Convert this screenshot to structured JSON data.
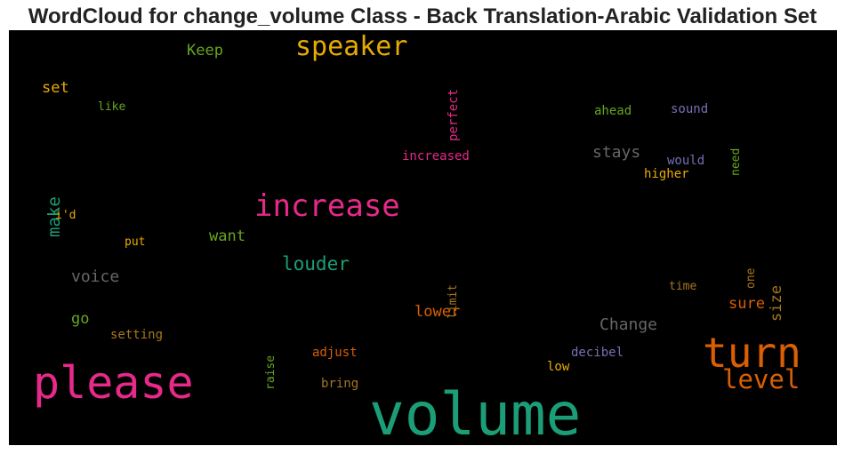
{
  "chart_data": {
    "type": "wordcloud",
    "title": "WordCloud for change_volume Class - Back Translation-Arabic Validation Set",
    "colors": {
      "green": "#1b9e77",
      "orange": "#d95f02",
      "purple": "#7570b3",
      "magenta": "#e7298a",
      "lime": "#66a61e",
      "yellow": "#e6ab02",
      "brown": "#a6761d",
      "gray": "#666666"
    },
    "words": [
      {
        "text": "volume",
        "color": "green",
        "orientation": "horizontal"
      },
      {
        "text": "please",
        "color": "magenta",
        "orientation": "horizontal"
      },
      {
        "text": "turn",
        "color": "orange",
        "orientation": "horizontal"
      },
      {
        "text": "increase",
        "color": "magenta",
        "orientation": "horizontal"
      },
      {
        "text": "speaker",
        "color": "yellow",
        "orientation": "horizontal"
      },
      {
        "text": "level",
        "color": "orange",
        "orientation": "horizontal"
      },
      {
        "text": "louder",
        "color": "green",
        "orientation": "horizontal"
      },
      {
        "text": "make",
        "color": "green",
        "orientation": "vertical"
      },
      {
        "text": "Change",
        "color": "gray",
        "orientation": "horizontal"
      },
      {
        "text": "stays",
        "color": "gray",
        "orientation": "horizontal"
      },
      {
        "text": "voice",
        "color": "gray",
        "orientation": "horizontal"
      },
      {
        "text": "want",
        "color": "lime",
        "orientation": "horizontal"
      },
      {
        "text": "lower",
        "color": "orange",
        "orientation": "horizontal"
      },
      {
        "text": "Keep",
        "color": "lime",
        "orientation": "horizontal"
      },
      {
        "text": "set",
        "color": "yellow",
        "orientation": "horizontal"
      },
      {
        "text": "go",
        "color": "lime",
        "orientation": "horizontal"
      },
      {
        "text": "sure",
        "color": "orange",
        "orientation": "horizontal"
      },
      {
        "text": "size",
        "color": "brown",
        "orientation": "vertical"
      },
      {
        "text": "perfect",
        "color": "magenta",
        "orientation": "vertical"
      },
      {
        "text": "like",
        "color": "lime",
        "orientation": "horizontal"
      },
      {
        "text": "ahead",
        "color": "lime",
        "orientation": "horizontal"
      },
      {
        "text": "sound",
        "color": "purple",
        "orientation": "horizontal"
      },
      {
        "text": "need",
        "color": "lime",
        "orientation": "vertical"
      },
      {
        "text": "increased",
        "color": "magenta",
        "orientation": "horizontal"
      },
      {
        "text": "would",
        "color": "purple",
        "orientation": "horizontal"
      },
      {
        "text": "higher",
        "color": "yellow",
        "orientation": "horizontal"
      },
      {
        "text": "i'd",
        "color": "yellow",
        "orientation": "horizontal"
      },
      {
        "text": "put",
        "color": "yellow",
        "orientation": "horizontal"
      },
      {
        "text": "limit",
        "color": "brown",
        "orientation": "vertical"
      },
      {
        "text": "one",
        "color": "brown",
        "orientation": "vertical"
      },
      {
        "text": "time",
        "color": "brown",
        "orientation": "horizontal"
      },
      {
        "text": "setting",
        "color": "brown",
        "orientation": "horizontal"
      },
      {
        "text": "raise",
        "color": "lime",
        "orientation": "vertical"
      },
      {
        "text": "adjust",
        "color": "orange",
        "orientation": "horizontal"
      },
      {
        "text": "decibel",
        "color": "purple",
        "orientation": "horizontal"
      },
      {
        "text": "low",
        "color": "yellow",
        "orientation": "horizontal"
      },
      {
        "text": "bring",
        "color": "brown",
        "orientation": "horizontal"
      }
    ]
  }
}
